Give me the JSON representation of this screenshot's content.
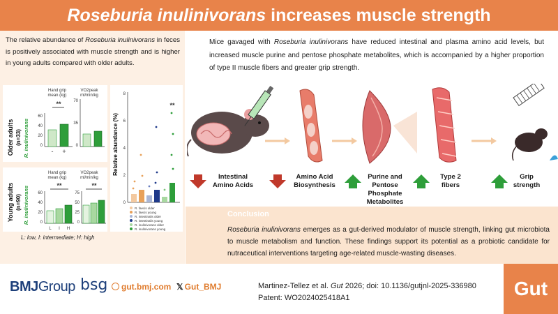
{
  "title": {
    "italic": "Roseburia inulinivorans",
    "rest": " increases muscle strength"
  },
  "left": {
    "text_a": "The relative abundance of ",
    "text_italic": "Roseburia inulinivorans",
    "text_b": " in feces is positively associated with muscle strength and is higher in young adults compared with older adults."
  },
  "older": {
    "group_label_1": "Older adults",
    "group_label_2": "(n=33)",
    "species_label": "R. inulinivorans",
    "hg_label_1": "Hand grip",
    "hg_label_2": "mean (kg)",
    "vo_label_1": "VO2peak",
    "vo_label_2": "ml/min/kg",
    "hg_ticks": [
      "60",
      "40",
      "20",
      "0"
    ],
    "vo_ticks": [
      "70",
      "35",
      "0"
    ],
    "sig": "**",
    "x_minus": "-",
    "x_plus": "+"
  },
  "young": {
    "group_label_1": "Young adults",
    "group_label_2": "(n=90)",
    "species_label": "R. inulinivorans",
    "hg_label_1": "Hand grip",
    "hg_label_2": "mean (kg)",
    "vo_label_1": "VO2peak",
    "vo_label_2": "ml/min/kg",
    "hg_ticks": [
      "60",
      "40",
      "20",
      "0"
    ],
    "vo_ticks": [
      "75",
      "50",
      "25",
      "0"
    ],
    "sig1": "**",
    "sig2": "**",
    "x_labels": [
      "L",
      "I",
      "H"
    ]
  },
  "legend_lih": "L: low, I: intermediate; H: high",
  "abundance": {
    "ylabel": "Relative abundance (%)",
    "ticks": [
      "8",
      "6",
      "4",
      "2",
      "0"
    ],
    "sig": "**",
    "legend": [
      "R. faecis older",
      "R. faecis young",
      "R. intestinalis older",
      "R. intestinalis young",
      "R. inulinivorans older",
      "R. inulinivorans young"
    ],
    "colors": [
      "#f3c9a0",
      "#e8a15a",
      "#a9b6d6",
      "#1f3a8a",
      "#a8d8a0",
      "#2e9e3a"
    ]
  },
  "right_top": {
    "text_a": "Mice gavaged with ",
    "text_italic": "Roseburia inulinivorans",
    "text_b": " have reduced intestinal and plasma amino acid levels, but increased muscle purine and pentose phosphate metabolites, which is accompanied by a higher proportion of type II muscle fibers and greater grip strength."
  },
  "stages": [
    {
      "label": "Intestinal Amino Acids",
      "direction": "down"
    },
    {
      "label": "Amino Acid Biosynthesis",
      "direction": "down"
    },
    {
      "label": "Purine and Pentose Phosphate Metabolites",
      "direction": "up"
    },
    {
      "label": "Type 2 fibers",
      "direction": "up"
    },
    {
      "label": "Grip strength",
      "direction": "up"
    }
  ],
  "conclusion": {
    "title": "Conclusion",
    "text_italic": "Roseburia inulinivorans",
    "text_b": " emerges as a gut-derived modulator of muscle strength, linking gut microbiota to muscle metabolism and function. These findings support its potential as a probiotic candidate for nutraceutical interventions targeting age-related muscle-wasting diseases."
  },
  "footer": {
    "bmj_a": "BMJ",
    "bmj_b": "Group",
    "bsg": "bsg",
    "gut_link": "gut.bmj.com",
    "x_handle": "Gut_BMJ",
    "citation_a": "Martinez-Tellez et al. ",
    "citation_italic": "Gut",
    "citation_b": " 2026; doi: 10.1136/gutjnl-2025-336980",
    "patent": "Patent: WO2024025418A1",
    "logo": "Gut"
  },
  "colors": {
    "accent": "#e8834a",
    "down_arrow": "#c0392b",
    "up_arrow": "#2e9e3a",
    "navy": "#1d3f7a"
  }
}
